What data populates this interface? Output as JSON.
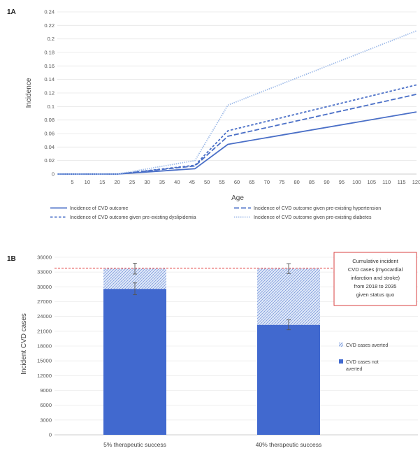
{
  "chart_data": [
    {
      "panel_label": "1A",
      "type": "line",
      "xlabel": "Age",
      "ylabel": "Incidence",
      "xlim": [
        0,
        120
      ],
      "ylim": [
        0,
        0.24
      ],
      "x_ticks": [
        "5",
        "10",
        "15",
        "20",
        "25",
        "30",
        "35",
        "40",
        "45",
        "50",
        "55",
        "60",
        "65",
        "70",
        "75",
        "80",
        "85",
        "90",
        "95",
        "100",
        "105",
        "110",
        "115",
        "120"
      ],
      "y_ticks": [
        "0",
        "0.02",
        "0.04",
        "0.06",
        "0.08",
        "0.1",
        "0.12",
        "0.14",
        "0.16",
        "0.18",
        "0.2",
        "0.22",
        "0.24"
      ],
      "grid": true,
      "legend_position": "bottom",
      "series": [
        {
          "name": "Incidence of CVD outcome",
          "style": "solid",
          "color": "#4a6fc7",
          "x": [
            0,
            20,
            46,
            57,
            120
          ],
          "y": [
            0,
            0,
            0.008,
            0.044,
            0.092
          ]
        },
        {
          "name": "Incidence of CVD outcome given pre-existing hypertension",
          "style": "longdash",
          "color": "#4a6fc7",
          "x": [
            0,
            20,
            46,
            57,
            120
          ],
          "y": [
            0,
            0,
            0.012,
            0.056,
            0.118
          ]
        },
        {
          "name": "Incidence of CVD outcome given pre-existing dyslipidemia",
          "style": "shortdash",
          "color": "#4a6fc7",
          "x": [
            0,
            20,
            46,
            57,
            120
          ],
          "y": [
            0,
            0,
            0.013,
            0.064,
            0.132
          ]
        },
        {
          "name": "Incidence of CVD outcome given pre-existing diabetes",
          "style": "dotted",
          "color": "#9cb9e8",
          "x": [
            0,
            20,
            46,
            57,
            120
          ],
          "y": [
            0,
            0,
            0.02,
            0.102,
            0.212
          ]
        }
      ]
    },
    {
      "panel_label": "1B",
      "type": "bar",
      "stacked": true,
      "ylabel": "Incident CVD cases",
      "ylim": [
        0,
        36000
      ],
      "y_ticks": [
        "0",
        "3000",
        "6000",
        "9000",
        "12000",
        "15000",
        "18000",
        "21000",
        "24000",
        "27000",
        "30000",
        "33000",
        "36000"
      ],
      "categories": [
        "5% therapeutic success",
        "40% therapeutic success"
      ],
      "series": [
        {
          "name": "CVD cases not averted",
          "values": [
            29600,
            22300
          ],
          "color": "#4169cf"
        },
        {
          "name": "CVD cases averted",
          "values": [
            4100,
            11400
          ],
          "color": "#bcd0f0",
          "pattern": "hatch"
        }
      ],
      "error_bars": [
        {
          "at": [
            29600,
            22300
          ],
          "err": [
            1200,
            1000
          ]
        },
        {
          "at": [
            33700,
            33700
          ],
          "err": [
            1100,
            1000
          ]
        }
      ],
      "reference_line": {
        "value": 33800,
        "color": "#e03030",
        "style": "dashed"
      },
      "annotation": [
        "Cumulative incident",
        "CVD cases (myocardial",
        "infarction and stroke)",
        "from 2018 to 2035",
        "given status quo"
      ],
      "legend_position": "right",
      "legend": [
        {
          "label_lines": [
            "CVD cases averted"
          ],
          "series": "CVD cases averted"
        },
        {
          "label_lines": [
            "CVD cases not",
            "averted"
          ],
          "series": "CVD cases not averted"
        }
      ]
    }
  ]
}
